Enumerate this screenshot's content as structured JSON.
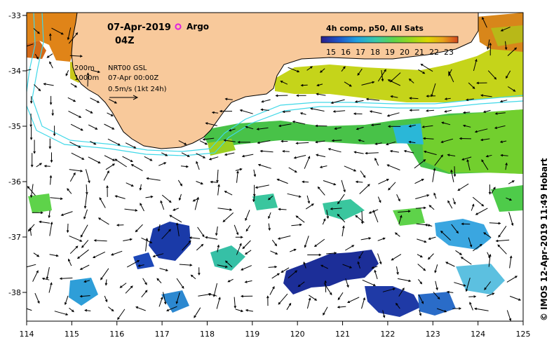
{
  "title": {
    "date": "07-Apr-2019",
    "time": "04Z",
    "argo_label": "Argo"
  },
  "legend": {
    "depth_200": "200m",
    "depth_1000": "1000m",
    "product": "NRT00 GSL",
    "product_time": "07-Apr 00:00Z",
    "vector_scale": "0.5m/s (1kt 24h)"
  },
  "colorbar": {
    "title": "4h comp, p50, All Sats",
    "ticks": [
      "15",
      "16",
      "17",
      "18",
      "19",
      "20",
      "21",
      "22",
      "23"
    ],
    "colors": [
      "#2a1e8a",
      "#1d55c8",
      "#1f9fe0",
      "#39c9a8",
      "#5ed34a",
      "#9ad81c",
      "#dcd800",
      "#e8a21c",
      "#d2461e"
    ]
  },
  "axes": {
    "lon_ticks": [
      "114",
      "115",
      "116",
      "117",
      "118",
      "119",
      "120",
      "121",
      "122",
      "123",
      "124",
      "125"
    ],
    "lat_ticks": [
      "-33",
      "-34",
      "-35",
      "-36",
      "-37",
      "-38"
    ]
  },
  "credit": "© IMOS 12-Apr-2019 11:49 Hobart",
  "colors": {
    "land": "#f8c99b",
    "coast": "#000000",
    "isobath": "#40d8e8",
    "argo": "#e020e0"
  }
}
